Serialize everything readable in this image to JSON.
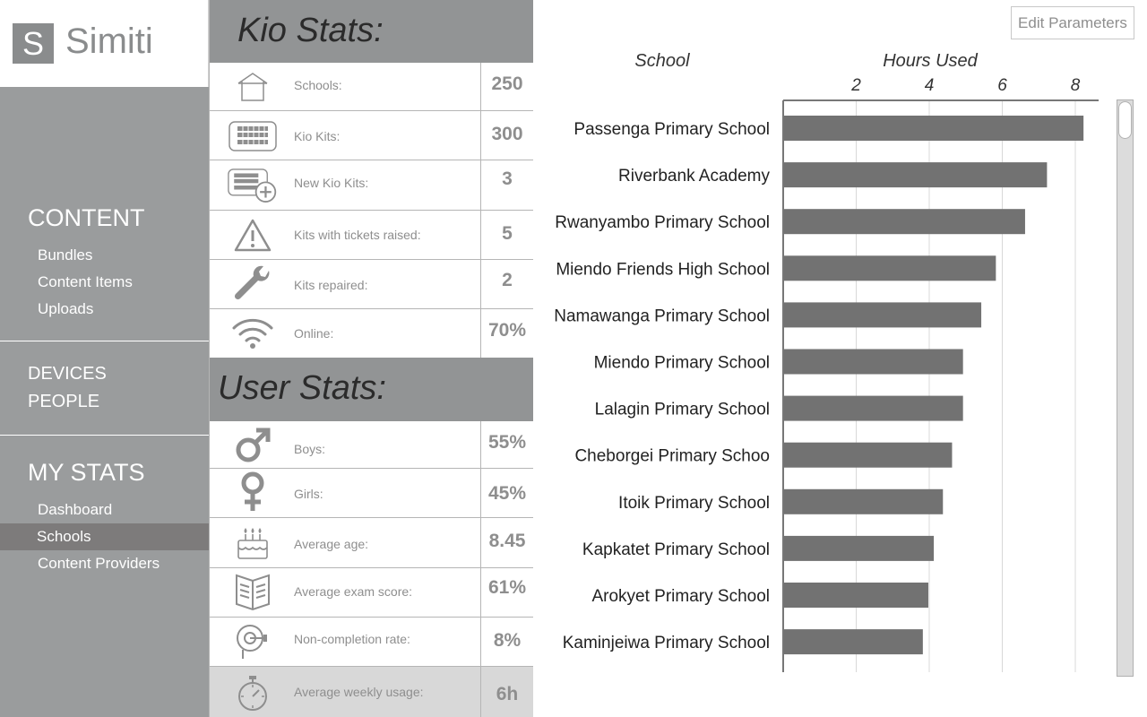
{
  "app": {
    "logo_letter": "S",
    "name": "Simiti"
  },
  "sidebar": {
    "content_heading": "CONTENT",
    "content_items": [
      "Bundles",
      "Content Items",
      "Uploads"
    ],
    "devices": "DEVICES",
    "people": "PEOPLE",
    "mystats_heading": "MY STATS",
    "mystats_items": [
      "Dashboard",
      "Schools",
      "Content Providers"
    ],
    "active_item": "Schools"
  },
  "kio_stats": {
    "title": "Kio Stats:",
    "rows": [
      {
        "icon": "school-house-icon",
        "label": "Schools:",
        "value": "250"
      },
      {
        "icon": "kio-kit-icon",
        "label": "Kio Kits:",
        "value": "300"
      },
      {
        "icon": "new-kit-plus-icon",
        "label": "New Kio Kits:",
        "value": "3"
      },
      {
        "icon": "warning-triangle-icon",
        "label": "Kits with tickets raised:",
        "value": "5"
      },
      {
        "icon": "wrench-icon",
        "label": "Kits repaired:",
        "value": "2"
      },
      {
        "icon": "wifi-icon",
        "label": "Online:",
        "value": "70%"
      }
    ]
  },
  "user_stats": {
    "title": "User Stats:",
    "rows": [
      {
        "icon": "male-symbol-icon",
        "label": "Boys:",
        "value": "55%"
      },
      {
        "icon": "female-symbol-icon",
        "label": "Girls:",
        "value": "45%"
      },
      {
        "icon": "birthday-cake-icon",
        "label": "Average age:",
        "value": "8.45"
      },
      {
        "icon": "open-book-icon",
        "label": "Average exam score:",
        "value": "61%"
      },
      {
        "icon": "alarm-bell-icon",
        "label": "Non-completion rate:",
        "value": "8%"
      },
      {
        "icon": "stopwatch-icon",
        "label": "Average weekly usage:",
        "value": "6h"
      }
    ]
  },
  "edit_button": "Edit Parameters",
  "chart_data": {
    "type": "bar",
    "orientation": "horizontal",
    "xlabel": "Hours Used",
    "ylabel": "School",
    "x_ticks": [
      2,
      4,
      6,
      8
    ],
    "xlim": [
      0,
      8.7
    ],
    "grid": true,
    "bar_color": "#727272",
    "categories": [
      "Passenga Primary School",
      "Riverbank Academy",
      "Rwanyambo Primary School",
      "Miendo Friends High School",
      "Namawanga Primary School",
      "Miendo Primary School",
      "Lalagin Primary School",
      "Cheborgei Primary Schoo",
      "Itoik Primary School",
      "Kapkatet Primary School",
      "Arokyet Primary School",
      "Kaminjeiwa Primary School"
    ],
    "values": [
      8.2,
      7.2,
      6.6,
      5.8,
      5.4,
      4.9,
      4.9,
      4.6,
      4.35,
      4.1,
      3.95,
      3.8
    ]
  },
  "colors": {
    "sidebar": "#9a9c9d",
    "header": "#929495",
    "active_nav": "#7d7b7b",
    "bar": "#727272"
  }
}
